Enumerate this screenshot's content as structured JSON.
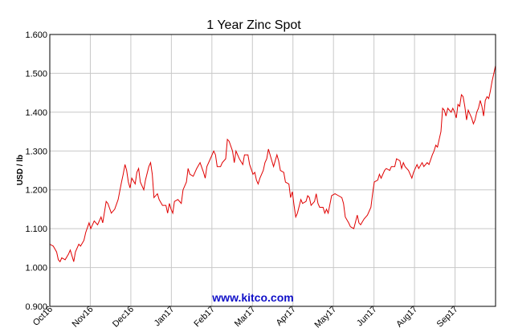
{
  "chart_data": {
    "type": "line",
    "title": "1 Year Zinc Spot",
    "xlabel": "",
    "ylabel": "USD / lb",
    "ylim": [
      0.9,
      1.6
    ],
    "yticks": [
      "0.900",
      "1.000",
      "1.100",
      "1.200",
      "1.300",
      "1.400",
      "1.500",
      "1.600"
    ],
    "xticks": [
      "Oct16",
      "Nov16",
      "Dec16",
      "Jan17",
      "Feb17",
      "Mar17",
      "Apr17",
      "May17",
      "Jun17",
      "Aug17",
      "Sep17"
    ],
    "grid": true,
    "legend": "none",
    "series_color": "#e00000",
    "series": [
      {
        "points": [
          [
            0,
            1.06
          ],
          [
            2,
            1.055
          ],
          [
            4,
            1.04
          ],
          [
            5,
            1.02
          ],
          [
            6,
            1.015
          ],
          [
            7,
            1.025
          ],
          [
            9,
            1.02
          ],
          [
            11,
            1.035
          ],
          [
            12,
            1.045
          ],
          [
            14,
            1.015
          ],
          [
            15,
            1.04
          ],
          [
            17,
            1.06
          ],
          [
            18,
            1.055
          ],
          [
            20,
            1.07
          ],
          [
            21,
            1.09
          ],
          [
            23,
            1.115
          ],
          [
            24,
            1.1
          ],
          [
            26,
            1.12
          ],
          [
            28,
            1.11
          ],
          [
            30,
            1.13
          ],
          [
            31,
            1.115
          ],
          [
            33,
            1.17
          ],
          [
            34,
            1.165
          ],
          [
            36,
            1.14
          ],
          [
            38,
            1.15
          ],
          [
            40,
            1.175
          ],
          [
            42,
            1.22
          ],
          [
            43,
            1.24
          ],
          [
            44,
            1.265
          ],
          [
            45,
            1.25
          ],
          [
            46,
            1.22
          ],
          [
            47,
            1.205
          ],
          [
            48,
            1.23
          ],
          [
            50,
            1.215
          ],
          [
            51,
            1.245
          ],
          [
            52,
            1.255
          ],
          [
            53,
            1.22
          ],
          [
            55,
            1.2
          ],
          [
            56,
            1.225
          ],
          [
            58,
            1.26
          ],
          [
            59,
            1.27
          ],
          [
            60,
            1.24
          ],
          [
            61,
            1.18
          ],
          [
            63,
            1.19
          ],
          [
            64,
            1.175
          ],
          [
            66,
            1.16
          ],
          [
            68,
            1.16
          ],
          [
            69,
            1.14
          ],
          [
            70,
            1.165
          ],
          [
            71,
            1.15
          ],
          [
            72,
            1.14
          ],
          [
            73,
            1.17
          ],
          [
            75,
            1.175
          ],
          [
            77,
            1.165
          ],
          [
            78,
            1.2
          ],
          [
            80,
            1.22
          ],
          [
            81,
            1.255
          ],
          [
            82,
            1.24
          ],
          [
            84,
            1.235
          ],
          [
            86,
            1.255
          ],
          [
            88,
            1.27
          ],
          [
            90,
            1.245
          ],
          [
            91,
            1.23
          ],
          [
            92,
            1.26
          ],
          [
            94,
            1.28
          ],
          [
            96,
            1.3
          ],
          [
            97,
            1.29
          ],
          [
            98,
            1.26
          ],
          [
            100,
            1.26
          ],
          [
            101,
            1.27
          ],
          [
            103,
            1.28
          ],
          [
            104,
            1.33
          ],
          [
            105,
            1.325
          ],
          [
            107,
            1.3
          ],
          [
            108,
            1.27
          ],
          [
            109,
            1.3
          ],
          [
            111,
            1.28
          ],
          [
            113,
            1.265
          ],
          [
            114,
            1.29
          ],
          [
            116,
            1.29
          ],
          [
            117,
            1.265
          ],
          [
            119,
            1.24
          ],
          [
            120,
            1.245
          ],
          [
            121,
            1.225
          ],
          [
            122,
            1.215
          ],
          [
            123,
            1.23
          ],
          [
            125,
            1.25
          ],
          [
            126,
            1.27
          ],
          [
            127,
            1.28
          ],
          [
            128,
            1.305
          ],
          [
            129,
            1.29
          ],
          [
            130,
            1.275
          ],
          [
            131,
            1.26
          ],
          [
            133,
            1.29
          ],
          [
            134,
            1.275
          ],
          [
            135,
            1.25
          ],
          [
            137,
            1.245
          ],
          [
            138,
            1.22
          ],
          [
            140,
            1.215
          ],
          [
            141,
            1.18
          ],
          [
            142,
            1.195
          ],
          [
            143,
            1.16
          ],
          [
            144,
            1.13
          ],
          [
            145,
            1.14
          ],
          [
            147,
            1.175
          ],
          [
            148,
            1.165
          ],
          [
            150,
            1.17
          ],
          [
            151,
            1.185
          ],
          [
            152,
            1.18
          ],
          [
            153,
            1.16
          ],
          [
            155,
            1.17
          ],
          [
            156,
            1.19
          ],
          [
            157,
            1.165
          ],
          [
            158,
            1.155
          ],
          [
            160,
            1.155
          ],
          [
            161,
            1.14
          ],
          [
            162,
            1.15
          ],
          [
            163,
            1.14
          ],
          [
            165,
            1.185
          ],
          [
            167,
            1.19
          ],
          [
            169,
            1.185
          ],
          [
            171,
            1.18
          ],
          [
            172,
            1.165
          ],
          [
            173,
            1.13
          ],
          [
            175,
            1.115
          ],
          [
            176,
            1.105
          ],
          [
            178,
            1.1
          ],
          [
            180,
            1.135
          ],
          [
            181,
            1.115
          ],
          [
            182,
            1.11
          ],
          [
            184,
            1.125
          ],
          [
            186,
            1.135
          ],
          [
            188,
            1.155
          ],
          [
            189,
            1.19
          ],
          [
            190,
            1.22
          ],
          [
            192,
            1.225
          ],
          [
            193,
            1.24
          ],
          [
            194,
            1.23
          ],
          [
            196,
            1.25
          ],
          [
            197,
            1.255
          ],
          [
            199,
            1.25
          ],
          [
            200,
            1.26
          ],
          [
            202,
            1.26
          ],
          [
            203,
            1.28
          ],
          [
            205,
            1.275
          ],
          [
            206,
            1.255
          ],
          [
            207,
            1.27
          ],
          [
            208,
            1.26
          ],
          [
            210,
            1.25
          ],
          [
            211,
            1.24
          ],
          [
            212,
            1.23
          ],
          [
            213,
            1.245
          ],
          [
            215,
            1.265
          ],
          [
            216,
            1.255
          ],
          [
            218,
            1.27
          ],
          [
            219,
            1.26
          ],
          [
            221,
            1.27
          ],
          [
            222,
            1.265
          ],
          [
            224,
            1.29
          ],
          [
            225,
            1.3
          ],
          [
            226,
            1.315
          ],
          [
            227,
            1.31
          ],
          [
            228,
            1.33
          ],
          [
            229,
            1.35
          ],
          [
            230,
            1.41
          ],
          [
            231,
            1.405
          ],
          [
            232,
            1.39
          ],
          [
            233,
            1.41
          ],
          [
            235,
            1.4
          ],
          [
            236,
            1.41
          ],
          [
            237,
            1.4
          ],
          [
            238,
            1.385
          ],
          [
            239,
            1.42
          ],
          [
            240,
            1.415
          ],
          [
            241,
            1.445
          ],
          [
            242,
            1.44
          ],
          [
            243,
            1.415
          ],
          [
            244,
            1.38
          ],
          [
            245,
            1.405
          ],
          [
            246,
            1.395
          ],
          [
            247,
            1.385
          ],
          [
            248,
            1.37
          ],
          [
            249,
            1.38
          ],
          [
            250,
            1.4
          ],
          [
            251,
            1.41
          ],
          [
            252,
            1.43
          ],
          [
            253,
            1.415
          ],
          [
            254,
            1.39
          ],
          [
            255,
            1.43
          ],
          [
            256,
            1.44
          ],
          [
            257,
            1.435
          ],
          [
            258,
            1.455
          ],
          [
            259,
            1.48
          ],
          [
            260,
            1.5
          ],
          [
            261,
            1.52
          ]
        ]
      }
    ]
  },
  "watermark": "www.kitco.com"
}
